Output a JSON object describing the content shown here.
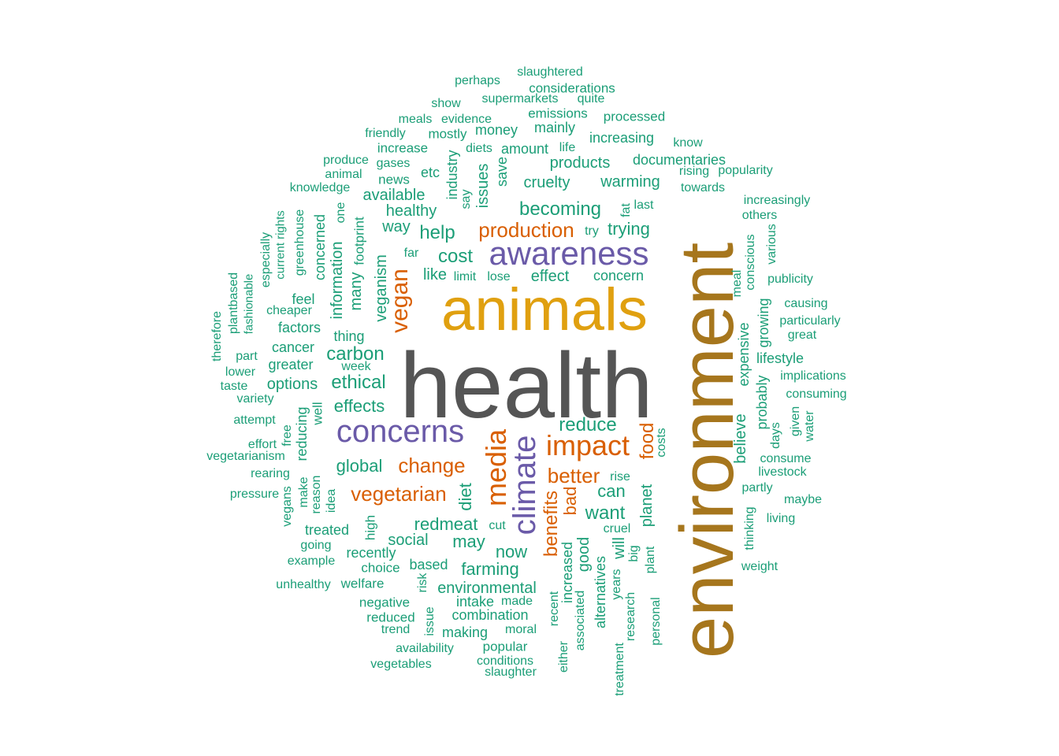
{
  "colors": {
    "green": "#1b9e77",
    "orange": "#d95f02",
    "purple": "#6a5aa8",
    "gold": "#e0a010",
    "brown": "#a6761d",
    "gray": "#555555"
  },
  "words": [
    {
      "text": "health",
      "color": "gray"
    },
    {
      "text": "environment",
      "color": "brown"
    },
    {
      "text": "animals",
      "color": "gold"
    },
    {
      "text": "awareness",
      "color": "purple"
    },
    {
      "text": "concerns",
      "color": "purple"
    },
    {
      "text": "climate",
      "color": "purple"
    },
    {
      "text": "impact",
      "color": "orange"
    },
    {
      "text": "media",
      "color": "orange"
    },
    {
      "text": "vegan",
      "color": "orange"
    },
    {
      "text": "production",
      "color": "orange"
    },
    {
      "text": "change",
      "color": "orange"
    },
    {
      "text": "vegetarian",
      "color": "orange"
    },
    {
      "text": "better",
      "color": "orange"
    },
    {
      "text": "benefits",
      "color": "orange"
    },
    {
      "text": "bad",
      "color": "orange"
    },
    {
      "text": "food",
      "color": "orange"
    },
    {
      "text": "becoming",
      "color": "green"
    },
    {
      "text": "trying",
      "color": "green"
    },
    {
      "text": "cost",
      "color": "green"
    },
    {
      "text": "help",
      "color": "green"
    },
    {
      "text": "carbon",
      "color": "green"
    },
    {
      "text": "ethical",
      "color": "green"
    },
    {
      "text": "effects",
      "color": "green"
    },
    {
      "text": "reduce",
      "color": "green"
    },
    {
      "text": "global",
      "color": "green"
    },
    {
      "text": "diet",
      "color": "green"
    },
    {
      "text": "can",
      "color": "green"
    },
    {
      "text": "want",
      "color": "green"
    },
    {
      "text": "redmeat",
      "color": "green"
    },
    {
      "text": "social",
      "color": "green"
    },
    {
      "text": "may",
      "color": "green"
    },
    {
      "text": "now",
      "color": "green"
    },
    {
      "text": "farming",
      "color": "green"
    },
    {
      "text": "environmental",
      "color": "green"
    },
    {
      "text": "products",
      "color": "green"
    },
    {
      "text": "cruelty",
      "color": "green"
    },
    {
      "text": "warming",
      "color": "green"
    },
    {
      "text": "healthy",
      "color": "green"
    },
    {
      "text": "available",
      "color": "green"
    },
    {
      "text": "veganism",
      "color": "green"
    },
    {
      "text": "many",
      "color": "green"
    },
    {
      "text": "information",
      "color": "green"
    },
    {
      "text": "issues",
      "color": "green"
    },
    {
      "text": "industry",
      "color": "green"
    },
    {
      "text": "planet",
      "color": "green"
    },
    {
      "text": "good",
      "color": "green"
    },
    {
      "text": "believe",
      "color": "green"
    },
    {
      "text": "expensive",
      "color": "green"
    },
    {
      "text": "probably",
      "color": "green"
    },
    {
      "text": "increased",
      "color": "green"
    },
    {
      "text": "will",
      "color": "green"
    },
    {
      "text": "way",
      "color": "green"
    },
    {
      "text": "like",
      "color": "green"
    },
    {
      "text": "effect",
      "color": "green"
    },
    {
      "text": "concern",
      "color": "green"
    },
    {
      "text": "feel",
      "color": "green"
    },
    {
      "text": "factors",
      "color": "green"
    },
    {
      "text": "thing",
      "color": "green"
    },
    {
      "text": "cancer",
      "color": "green"
    },
    {
      "text": "greater",
      "color": "green"
    },
    {
      "text": "options",
      "color": "green"
    },
    {
      "text": "etc",
      "color": "green"
    },
    {
      "text": "news",
      "color": "green"
    },
    {
      "text": "save",
      "color": "green"
    },
    {
      "text": "footprint",
      "color": "green"
    },
    {
      "text": "concerned",
      "color": "green"
    },
    {
      "text": "mainly",
      "color": "green"
    },
    {
      "text": "increasing",
      "color": "green"
    },
    {
      "text": "documentaries",
      "color": "green"
    },
    {
      "text": "amount",
      "color": "green"
    },
    {
      "text": "money",
      "color": "green"
    },
    {
      "text": "emissions",
      "color": "green"
    },
    {
      "text": "supermarkets",
      "color": "green"
    },
    {
      "text": "considerations",
      "color": "green"
    },
    {
      "text": "slaughtered",
      "color": "green"
    },
    {
      "text": "perhaps",
      "color": "green"
    },
    {
      "text": "show",
      "color": "green"
    },
    {
      "text": "quite",
      "color": "green"
    },
    {
      "text": "processed",
      "color": "green"
    },
    {
      "text": "meals",
      "color": "green"
    },
    {
      "text": "evidence",
      "color": "green"
    },
    {
      "text": "friendly",
      "color": "green"
    },
    {
      "text": "mostly",
      "color": "green"
    },
    {
      "text": "increase",
      "color": "green"
    },
    {
      "text": "diets",
      "color": "green"
    },
    {
      "text": "life",
      "color": "green"
    },
    {
      "text": "know",
      "color": "green"
    },
    {
      "text": "produce",
      "color": "green"
    },
    {
      "text": "gases",
      "color": "green"
    },
    {
      "text": "animal",
      "color": "green"
    },
    {
      "text": "knowledge",
      "color": "green"
    },
    {
      "text": "rising",
      "color": "green"
    },
    {
      "text": "popularity",
      "color": "green"
    },
    {
      "text": "towards",
      "color": "green"
    },
    {
      "text": "increasingly",
      "color": "green"
    },
    {
      "text": "others",
      "color": "green"
    },
    {
      "text": "last",
      "color": "green"
    },
    {
      "text": "fat",
      "color": "green"
    },
    {
      "text": "say",
      "color": "green"
    },
    {
      "text": "one",
      "color": "green"
    },
    {
      "text": "try",
      "color": "green"
    },
    {
      "text": "far",
      "color": "green"
    },
    {
      "text": "limit",
      "color": "green"
    },
    {
      "text": "lose",
      "color": "green"
    },
    {
      "text": "various",
      "color": "green"
    },
    {
      "text": "conscious",
      "color": "green"
    },
    {
      "text": "meal",
      "color": "green"
    },
    {
      "text": "publicity",
      "color": "green"
    },
    {
      "text": "causing",
      "color": "green"
    },
    {
      "text": "particularly",
      "color": "green"
    },
    {
      "text": "great",
      "color": "green"
    },
    {
      "text": "growing",
      "color": "green"
    },
    {
      "text": "lifestyle",
      "color": "green"
    },
    {
      "text": "implications",
      "color": "green"
    },
    {
      "text": "consuming",
      "color": "green"
    },
    {
      "text": "given",
      "color": "green"
    },
    {
      "text": "water",
      "color": "green"
    },
    {
      "text": "days",
      "color": "green"
    },
    {
      "text": "consume",
      "color": "green"
    },
    {
      "text": "livestock",
      "color": "green"
    },
    {
      "text": "partly",
      "color": "green"
    },
    {
      "text": "maybe",
      "color": "green"
    },
    {
      "text": "living",
      "color": "green"
    },
    {
      "text": "thinking",
      "color": "green"
    },
    {
      "text": "weight",
      "color": "green"
    },
    {
      "text": "costs",
      "color": "green"
    },
    {
      "text": "rise",
      "color": "green"
    },
    {
      "text": "cruel",
      "color": "green"
    },
    {
      "text": "big",
      "color": "green"
    },
    {
      "text": "plant",
      "color": "green"
    },
    {
      "text": "years",
      "color": "green"
    },
    {
      "text": "alternatives",
      "color": "green"
    },
    {
      "text": "research",
      "color": "green"
    },
    {
      "text": "personal",
      "color": "green"
    },
    {
      "text": "treatment",
      "color": "green"
    },
    {
      "text": "associated",
      "color": "green"
    },
    {
      "text": "recent",
      "color": "green"
    },
    {
      "text": "either",
      "color": "green"
    },
    {
      "text": "cut",
      "color": "green"
    },
    {
      "text": "made",
      "color": "green"
    },
    {
      "text": "intake",
      "color": "green"
    },
    {
      "text": "combination",
      "color": "green"
    },
    {
      "text": "moral",
      "color": "green"
    },
    {
      "text": "making",
      "color": "green"
    },
    {
      "text": "popular",
      "color": "green"
    },
    {
      "text": "conditions",
      "color": "green"
    },
    {
      "text": "slaughter",
      "color": "green"
    },
    {
      "text": "availability",
      "color": "green"
    },
    {
      "text": "vegetables",
      "color": "green"
    },
    {
      "text": "issue",
      "color": "green"
    },
    {
      "text": "trend",
      "color": "green"
    },
    {
      "text": "reduced",
      "color": "green"
    },
    {
      "text": "negative",
      "color": "green"
    },
    {
      "text": "risk",
      "color": "green"
    },
    {
      "text": "welfare",
      "color": "green"
    },
    {
      "text": "unhealthy",
      "color": "green"
    },
    {
      "text": "based",
      "color": "green"
    },
    {
      "text": "choice",
      "color": "green"
    },
    {
      "text": "recently",
      "color": "green"
    },
    {
      "text": "example",
      "color": "green"
    },
    {
      "text": "going",
      "color": "green"
    },
    {
      "text": "high",
      "color": "green"
    },
    {
      "text": "treated",
      "color": "green"
    },
    {
      "text": "idea",
      "color": "green"
    },
    {
      "text": "reason",
      "color": "green"
    },
    {
      "text": "make",
      "color": "green"
    },
    {
      "text": "vegans",
      "color": "green"
    },
    {
      "text": "pressure",
      "color": "green"
    },
    {
      "text": "rearing",
      "color": "green"
    },
    {
      "text": "vegetarianism",
      "color": "green"
    },
    {
      "text": "effort",
      "color": "green"
    },
    {
      "text": "reducing",
      "color": "green"
    },
    {
      "text": "free",
      "color": "green"
    },
    {
      "text": "attempt",
      "color": "green"
    },
    {
      "text": "well",
      "color": "green"
    },
    {
      "text": "variety",
      "color": "green"
    },
    {
      "text": "taste",
      "color": "green"
    },
    {
      "text": "lower",
      "color": "green"
    },
    {
      "text": "part",
      "color": "green"
    },
    {
      "text": "week",
      "color": "green"
    },
    {
      "text": "therefore",
      "color": "green"
    },
    {
      "text": "plantbased",
      "color": "green"
    },
    {
      "text": "fashionable",
      "color": "green"
    },
    {
      "text": "especially",
      "color": "green"
    },
    {
      "text": "current rights",
      "color": "green"
    },
    {
      "text": "greenhouse",
      "color": "green"
    },
    {
      "text": "cheaper",
      "color": "green"
    }
  ]
}
